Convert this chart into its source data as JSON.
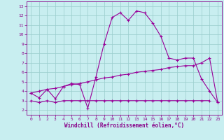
{
  "xlabel": "Windchill (Refroidissement éolien,°C)",
  "xlim": [
    -0.5,
    23.5
  ],
  "ylim": [
    1.5,
    13.5
  ],
  "xticks": [
    0,
    1,
    2,
    3,
    4,
    5,
    6,
    7,
    8,
    9,
    10,
    11,
    12,
    13,
    14,
    15,
    16,
    17,
    18,
    19,
    20,
    21,
    22,
    23
  ],
  "yticks": [
    2,
    3,
    4,
    5,
    6,
    7,
    8,
    9,
    10,
    11,
    12,
    13
  ],
  "bg_color": "#c8eef0",
  "grid_color": "#99cccc",
  "line_color": "#990099",
  "line1_x": [
    0,
    1,
    2,
    3,
    4,
    5,
    6,
    7,
    8,
    9,
    10,
    11,
    12,
    13,
    14,
    15,
    16,
    17,
    18,
    19,
    20,
    21,
    22,
    23
  ],
  "line1_y": [
    3.8,
    3.3,
    4.2,
    3.2,
    4.5,
    4.8,
    4.7,
    2.2,
    5.5,
    9.0,
    11.8,
    12.3,
    11.5,
    12.5,
    12.3,
    11.2,
    9.8,
    7.5,
    7.3,
    7.5,
    7.5,
    5.3,
    4.0,
    2.8
  ],
  "line2_x": [
    0,
    1,
    2,
    3,
    4,
    5,
    6,
    7,
    8,
    9,
    10,
    11,
    12,
    13,
    14,
    15,
    16,
    17,
    18,
    19,
    20,
    21,
    22
  ],
  "line2_y": [
    3.0,
    2.8,
    3.0,
    2.8,
    3.0,
    3.0,
    3.0,
    3.0,
    3.0,
    3.0,
    3.0,
    3.0,
    3.0,
    3.0,
    3.0,
    3.0,
    3.0,
    3.0,
    3.0,
    3.0,
    3.0,
    3.0,
    3.0
  ],
  "line3_x": [
    0,
    1,
    2,
    3,
    4,
    5,
    6,
    7,
    8,
    9,
    10,
    11,
    12,
    13,
    14,
    15,
    16,
    17,
    18,
    19,
    20,
    21,
    22,
    23
  ],
  "line3_y": [
    3.8,
    4.0,
    4.2,
    4.3,
    4.5,
    4.7,
    4.8,
    5.0,
    5.2,
    5.4,
    5.5,
    5.7,
    5.8,
    6.0,
    6.1,
    6.2,
    6.3,
    6.5,
    6.6,
    6.7,
    6.7,
    7.0,
    7.5,
    2.8
  ]
}
